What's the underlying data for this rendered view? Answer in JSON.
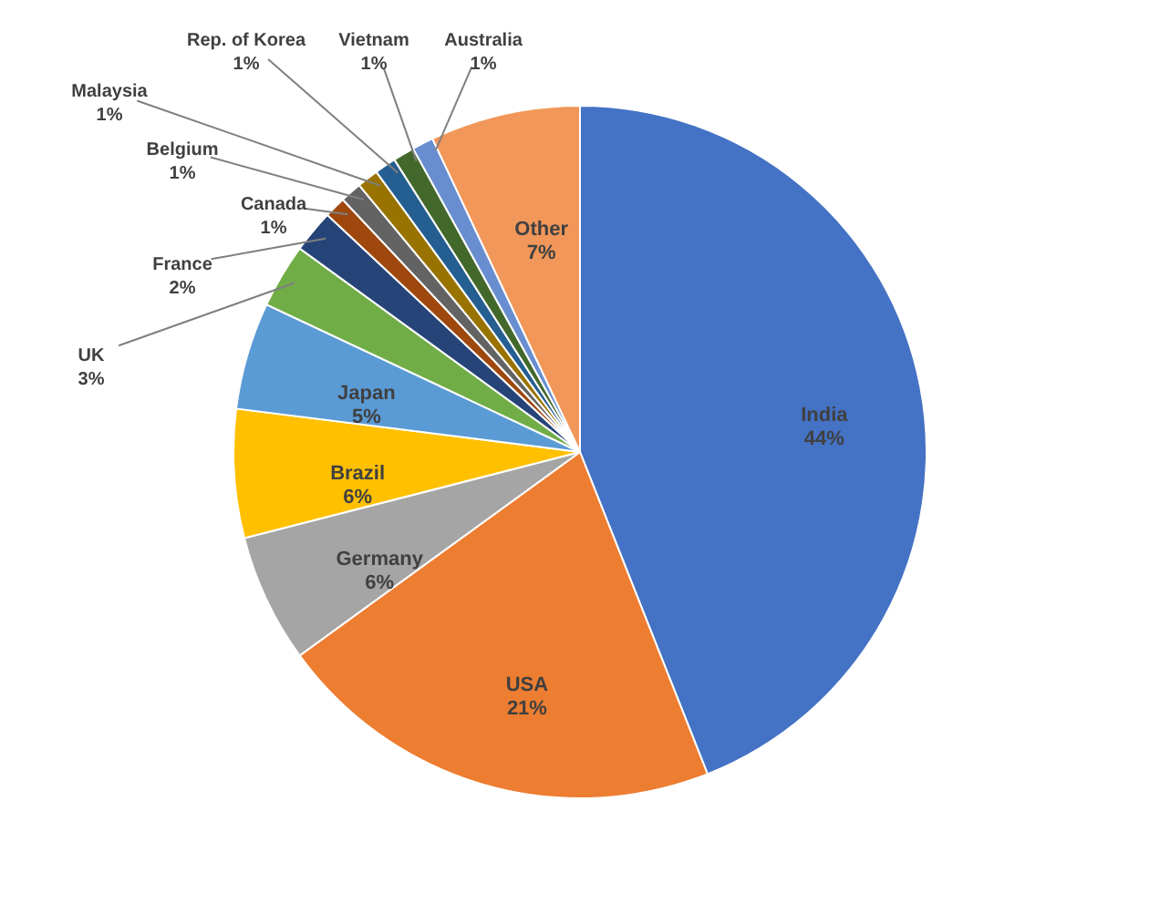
{
  "chart_data": {
    "type": "pie",
    "categories": [
      "India",
      "USA",
      "Germany",
      "Brazil",
      "Japan",
      "UK",
      "France",
      "Canada",
      "Belgium",
      "Malaysia",
      "Rep. of Korea",
      "Vietnam",
      "Australia",
      "Other"
    ],
    "values": [
      44,
      21,
      6,
      6,
      5,
      3,
      2,
      1,
      1,
      1,
      1,
      1,
      1,
      7
    ],
    "colors": [
      "#4472c4",
      "#ed7d31",
      "#a5a5a5",
      "#ffc000",
      "#5b9bd5",
      "#70ad47",
      "#264478",
      "#9e480e",
      "#636363",
      "#997300",
      "#255e91",
      "#43682b",
      "#698ed0",
      "#f1975a"
    ],
    "value_labels": [
      "44%",
      "21%",
      "6%",
      "6%",
      "5%",
      "3%",
      "2%",
      "1%",
      "1%",
      "1%",
      "1%",
      "1%",
      "1%",
      "7%"
    ]
  }
}
